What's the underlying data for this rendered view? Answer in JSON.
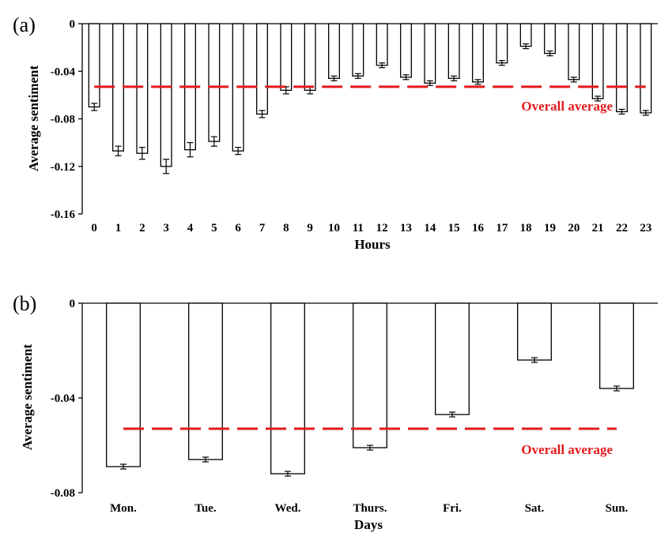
{
  "colors": {
    "bar_fill": "#ffffff",
    "bar_stroke": "#000000",
    "reference_line": "#e31a1c",
    "axis": "#000000"
  },
  "chart_data": [
    {
      "panel_label": "(a)",
      "type": "bar",
      "xlabel": "Hours",
      "ylabel": "Average sentiment",
      "ylim": [
        -0.16,
        0
      ],
      "yticks": [
        0,
        -0.04,
        -0.08,
        -0.12,
        -0.16
      ],
      "ytick_labels": [
        "0",
        "-0.04",
        "-0.08",
        "-0.12",
        "-0.16"
      ],
      "categories": [
        "0",
        "1",
        "2",
        "3",
        "4",
        "5",
        "6",
        "7",
        "8",
        "9",
        "10",
        "11",
        "12",
        "13",
        "14",
        "15",
        "16",
        "17",
        "18",
        "19",
        "20",
        "21",
        "22",
        "23"
      ],
      "values": [
        -0.07,
        -0.107,
        -0.109,
        -0.12,
        -0.106,
        -0.099,
        -0.107,
        -0.076,
        -0.056,
        -0.056,
        -0.046,
        -0.044,
        -0.035,
        -0.045,
        -0.05,
        -0.046,
        -0.049,
        -0.033,
        -0.019,
        -0.025,
        -0.047,
        -0.063,
        -0.074,
        -0.075
      ],
      "errors": [
        0.003,
        0.004,
        0.005,
        0.006,
        0.006,
        0.004,
        0.003,
        0.003,
        0.003,
        0.003,
        0.002,
        0.002,
        0.002,
        0.002,
        0.002,
        0.002,
        0.002,
        0.002,
        0.002,
        0.002,
        0.002,
        0.002,
        0.002,
        0.002
      ],
      "reference_line": {
        "value": -0.053,
        "label": "Overall average",
        "from_index": 0,
        "to_index": 23
      },
      "grid": false
    },
    {
      "panel_label": "(b)",
      "type": "bar",
      "xlabel": "Days",
      "ylabel": "Average sentiment",
      "ylim": [
        -0.08,
        0
      ],
      "yticks": [
        0,
        -0.04,
        -0.08
      ],
      "ytick_labels": [
        "0",
        "-0.04",
        "-0.08"
      ],
      "categories": [
        "Mon.",
        "Tue.",
        "Wed.",
        "Thurs.",
        "Fri.",
        "Sat.",
        "Sun."
      ],
      "values": [
        -0.069,
        -0.066,
        -0.072,
        -0.061,
        -0.047,
        -0.024,
        -0.036
      ],
      "errors": [
        0.001,
        0.001,
        0.001,
        0.001,
        0.001,
        0.001,
        0.001
      ],
      "reference_line": {
        "value": -0.053,
        "label": "Overall average",
        "from_index": 0,
        "to_index": 6
      },
      "grid": false
    }
  ]
}
